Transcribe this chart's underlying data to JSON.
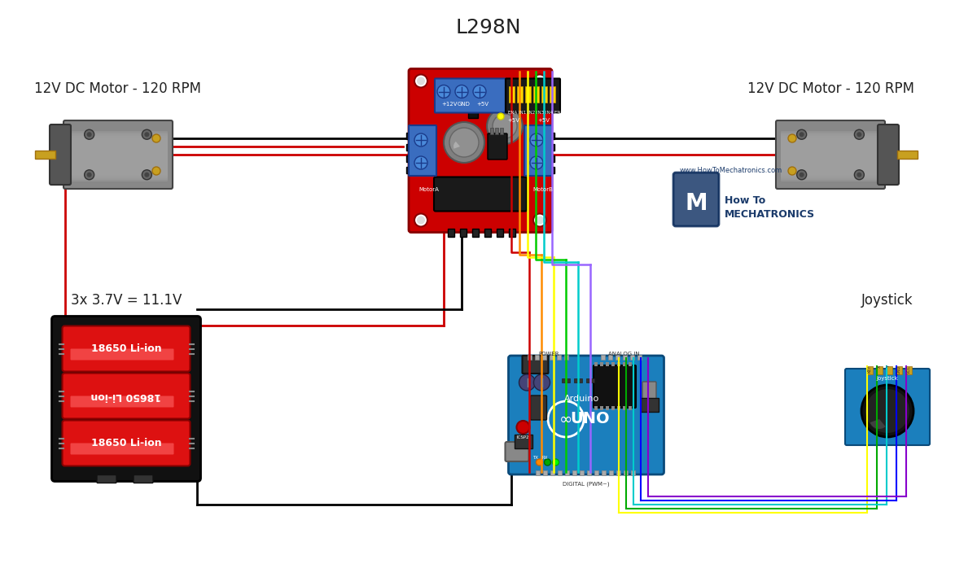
{
  "title": "L298N",
  "bg_color": "#ffffff",
  "motor_left_label": "12V DC Motor - 120 RPM",
  "motor_right_label": "12V DC Motor - 120 RPM",
  "battery_label": "3x 3.7V = 11.1V",
  "battery_cells": [
    "18650 Li-ion",
    "18650 Li-ion",
    "18650 Li-ion"
  ],
  "joystick_label": "Joystick",
  "wire_colors": [
    "#cc0000",
    "#000000",
    "#ff8c00",
    "#ffff00",
    "#00cc00",
    "#00cccc",
    "#0000ff",
    "#8800cc"
  ],
  "brand_text": "How To\nMECHATRONICS",
  "website_text": "www.HowToMechatronics.com",
  "motor_body_color": "#888888",
  "motor_cap_color": "#555555",
  "l298n_red": "#cc0000",
  "l298n_blue": "#3a6dbf",
  "l298n_black": "#111111",
  "arduino_blue": "#1b7fbd",
  "joystick_board_color": "#1b7fbd",
  "battery_case_color": "#111111",
  "battery_cell_color": "#dd1111"
}
